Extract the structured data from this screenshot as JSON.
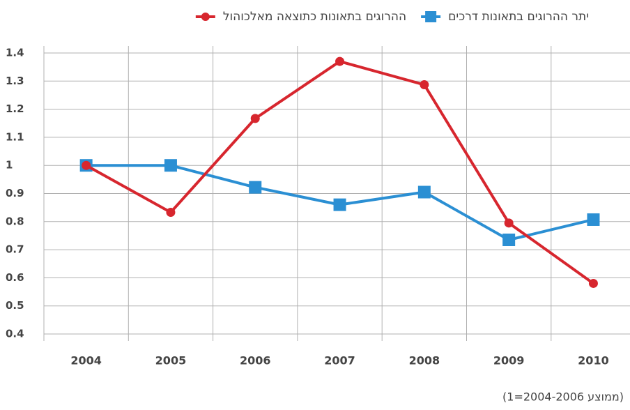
{
  "chart_data": {
    "type": "line",
    "categories": [
      "2004",
      "2005",
      "2006",
      "2007",
      "2008",
      "2009",
      "2010"
    ],
    "series": [
      {
        "name": "יתר ההרוגים בתאונות דרכים",
        "color": "#2b8fd3",
        "marker": "square",
        "values": [
          1.0,
          1.0,
          0.922,
          0.86,
          0.905,
          0.735,
          0.807
        ]
      },
      {
        "name": "ההרוגים בתאונות כתוצאה מאלכוהול",
        "color": "#d7262e",
        "marker": "circle",
        "values": [
          1.0,
          0.833,
          1.167,
          1.37,
          1.287,
          0.795,
          0.58
        ]
      }
    ],
    "ylim": [
      0.4,
      1.4
    ],
    "yticks": [
      0.4,
      0.5,
      0.6,
      0.7,
      0.8,
      0.9,
      1,
      1.1,
      1.2,
      1.3,
      1.4
    ],
    "grid": true,
    "legend": "top",
    "note": "(ממוצע 2004-2006=1)"
  }
}
